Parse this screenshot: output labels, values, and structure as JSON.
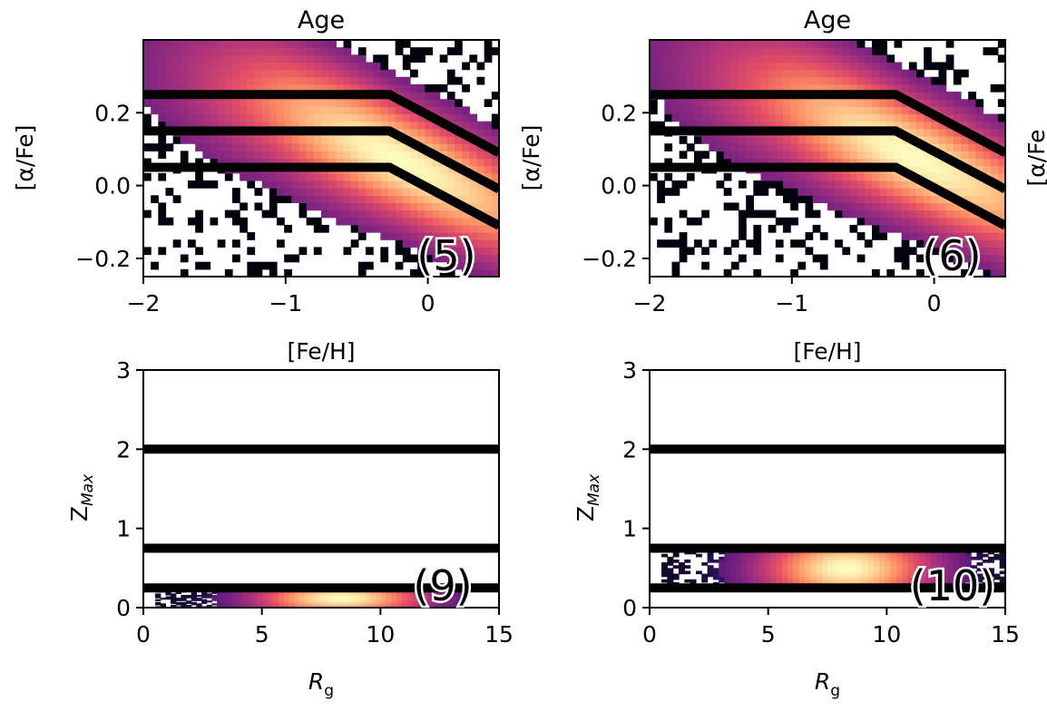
{
  "chart_data": [
    {
      "type": "heatmap",
      "panel": "top-left",
      "title": "Age",
      "xlabel": "[Fe/H]",
      "ylabel": "[α/Fe]",
      "xlim": [
        -2,
        0.5
      ],
      "ylim": [
        -0.25,
        0.4
      ],
      "xticks": [
        "−2",
        "−1",
        "0"
      ],
      "xtick_values": [
        -2,
        -1,
        0
      ],
      "yticks": [
        "−0.2",
        "0.0",
        "0.2"
      ],
      "ytick_values": [
        -0.2,
        0.0,
        0.2
      ],
      "annotation": "(5)",
      "colormap": "magma",
      "boundary_lines": [
        {
          "x": [
            -2,
            -0.27,
            0.5
          ],
          "y": [
            0.25,
            0.25,
            0.09
          ]
        },
        {
          "x": [
            -2,
            -0.27,
            0.5
          ],
          "y": [
            0.15,
            0.15,
            -0.01
          ]
        },
        {
          "x": [
            -2,
            -0.27,
            0.5
          ],
          "y": [
            0.05,
            0.05,
            -0.11
          ]
        }
      ],
      "density_ridge": {
        "x_peak": -0.2,
        "y_at_peak": 0.07,
        "slope": -0.18
      }
    },
    {
      "type": "heatmap",
      "panel": "top-right",
      "title": "Age",
      "xlabel": "",
      "ylabel": "[α/Fe]",
      "xlim": [
        -2,
        0.5
      ],
      "ylim": [
        -0.25,
        0.4
      ],
      "xticks": [
        "−2",
        "−1",
        "0"
      ],
      "xtick_values": [
        -2,
        -1,
        0
      ],
      "yticks": [
        "−0.2",
        "0.0",
        "0.2"
      ],
      "ytick_values": [
        -0.2,
        0.0,
        0.2
      ],
      "annotation": "(6)",
      "colormap": "magma",
      "boundary_lines": [
        {
          "x": [
            -2,
            -0.27,
            0.5
          ],
          "y": [
            0.25,
            0.25,
            0.09
          ]
        },
        {
          "x": [
            -2,
            -0.27,
            0.5
          ],
          "y": [
            0.15,
            0.15,
            -0.01
          ]
        },
        {
          "x": [
            -2,
            -0.27,
            0.5
          ],
          "y": [
            0.05,
            0.05,
            -0.11
          ]
        }
      ],
      "density_ridge": {
        "x_peak": -0.15,
        "y_at_peak": 0.08,
        "slope": -0.18
      }
    },
    {
      "type": "heatmap",
      "panel": "bottom-left",
      "title": "",
      "xlabel": "R_g",
      "ylabel": "Z_Max",
      "xlim": [
        0,
        15
      ],
      "ylim": [
        0,
        3
      ],
      "xticks": [
        "0",
        "5",
        "10",
        "15"
      ],
      "xtick_values": [
        0,
        5,
        10,
        15
      ],
      "yticks": [
        "0",
        "1",
        "2",
        "3"
      ],
      "ytick_values": [
        0,
        1,
        2,
        3
      ],
      "annotation": "(9)",
      "colormap": "magma",
      "boundary_lines": [
        {
          "x": [
            0,
            15
          ],
          "y": [
            2.0,
            2.0
          ]
        },
        {
          "x": [
            0,
            15
          ],
          "y": [
            0.75,
            0.75
          ]
        },
        {
          "x": [
            0,
            15
          ],
          "y": [
            0.25,
            0.25
          ]
        }
      ],
      "density_band": {
        "y_min": 0.0,
        "y_max": 0.25,
        "x_min": 0.5,
        "x_max": 13.5,
        "x_peak": 8.3
      }
    },
    {
      "type": "heatmap",
      "panel": "bottom-right",
      "title": "",
      "xlabel": "R_g",
      "ylabel": "Z_Max",
      "xlim": [
        0,
        15
      ],
      "ylim": [
        0,
        3
      ],
      "xticks": [
        "0",
        "5",
        "10",
        "15"
      ],
      "xtick_values": [
        0,
        5,
        10,
        15
      ],
      "yticks": [
        "0",
        "1",
        "2",
        "3"
      ],
      "ytick_values": [
        0,
        1,
        2,
        3
      ],
      "annotation": "(10)",
      "colormap": "magma",
      "boundary_lines": [
        {
          "x": [
            0,
            15
          ],
          "y": [
            2.0,
            2.0
          ]
        },
        {
          "x": [
            0,
            15
          ],
          "y": [
            0.75,
            0.75
          ]
        },
        {
          "x": [
            0,
            15
          ],
          "y": [
            0.25,
            0.25
          ]
        }
      ],
      "density_band": {
        "y_min": 0.25,
        "y_max": 0.75,
        "x_min": 0.5,
        "x_max": 15,
        "x_peak": 8.3
      }
    }
  ],
  "clipped_edge_label": "[α/Fe"
}
